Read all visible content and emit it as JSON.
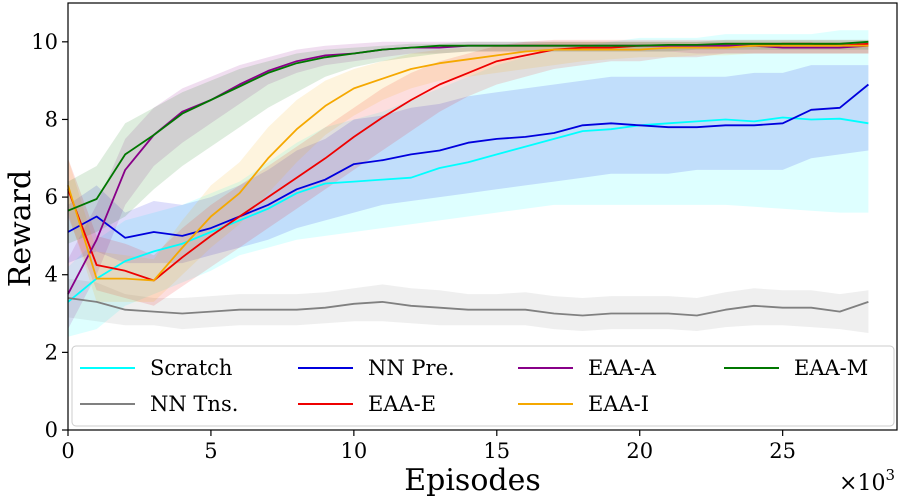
{
  "chart_data": {
    "type": "line",
    "xlabel": "Episodes",
    "ylabel": "Reward",
    "x_multiplier_label": "×10",
    "x_multiplier_exp": "3",
    "xlim": [
      0,
      29
    ],
    "ylim": [
      0,
      11
    ],
    "xticks": [
      0,
      5,
      10,
      15,
      20,
      25
    ],
    "yticks": [
      0,
      2,
      4,
      6,
      8,
      10
    ],
    "grid": false,
    "legend_position": "bottom",
    "x": [
      0,
      1,
      2,
      3,
      4,
      5,
      6,
      7,
      8,
      9,
      10,
      11,
      12,
      13,
      14,
      15,
      16,
      17,
      18,
      19,
      20,
      21,
      22,
      23,
      24,
      25,
      26,
      27,
      28
    ],
    "series": [
      {
        "name": "Scratch",
        "color": "#00ffff",
        "values": [
          3.3,
          3.9,
          4.35,
          4.6,
          4.8,
          5.1,
          5.4,
          5.7,
          6.1,
          6.35,
          6.4,
          6.45,
          6.5,
          6.75,
          6.9,
          7.1,
          7.3,
          7.5,
          7.7,
          7.75,
          7.85,
          7.9,
          7.95,
          8.0,
          7.95,
          8.05,
          8.0,
          8.02,
          7.9
        ],
        "lower": [
          2.4,
          2.6,
          3.2,
          3.5,
          3.8,
          4.1,
          4.5,
          4.7,
          4.9,
          5.0,
          5.1,
          5.2,
          5.3,
          5.4,
          5.5,
          5.6,
          5.7,
          5.8,
          5.8,
          5.8,
          5.8,
          5.8,
          5.8,
          5.8,
          5.75,
          5.7,
          5.65,
          5.6,
          5.6
        ],
        "upper": [
          4.2,
          4.9,
          5.4,
          5.6,
          5.8,
          6.1,
          6.4,
          6.9,
          7.4,
          7.8,
          8.0,
          8.2,
          8.5,
          8.8,
          9.1,
          9.4,
          9.6,
          9.8,
          9.9,
          10.0,
          10.1,
          10.1,
          10.1,
          10.2,
          10.2,
          10.2,
          10.2,
          10.3,
          10.3
        ]
      },
      {
        "name": "NN Tns.",
        "color": "#808080",
        "values": [
          3.4,
          3.3,
          3.1,
          3.05,
          3.0,
          3.05,
          3.1,
          3.1,
          3.1,
          3.15,
          3.25,
          3.3,
          3.2,
          3.15,
          3.1,
          3.1,
          3.1,
          3.0,
          2.95,
          3.0,
          3.0,
          3.0,
          2.95,
          3.1,
          3.2,
          3.15,
          3.15,
          3.05,
          3.3
        ],
        "lower": [
          2.9,
          2.8,
          2.7,
          2.7,
          2.6,
          2.65,
          2.7,
          2.7,
          2.7,
          2.75,
          2.8,
          2.8,
          2.75,
          2.7,
          2.7,
          2.7,
          2.7,
          2.6,
          2.55,
          2.6,
          2.6,
          2.6,
          2.55,
          2.65,
          2.7,
          2.7,
          2.65,
          2.6,
          2.5
        ],
        "upper": [
          3.9,
          3.8,
          3.5,
          3.4,
          3.4,
          3.45,
          3.5,
          3.5,
          3.5,
          3.55,
          3.65,
          3.75,
          3.65,
          3.6,
          3.5,
          3.5,
          3.55,
          3.45,
          3.4,
          3.45,
          3.45,
          3.45,
          3.4,
          3.55,
          3.65,
          3.6,
          3.6,
          3.5,
          3.6
        ]
      },
      {
        "name": "NN Pre.",
        "color": "#0000dd",
        "values": [
          5.1,
          5.5,
          4.95,
          5.1,
          5.0,
          5.2,
          5.5,
          5.8,
          6.2,
          6.45,
          6.85,
          6.95,
          7.1,
          7.2,
          7.4,
          7.5,
          7.55,
          7.65,
          7.85,
          7.9,
          7.85,
          7.8,
          7.8,
          7.85,
          7.85,
          7.9,
          8.25,
          8.3,
          8.9
        ],
        "lower": [
          4.3,
          4.6,
          4.3,
          4.3,
          4.3,
          4.5,
          4.7,
          4.9,
          5.2,
          5.4,
          5.6,
          5.8,
          5.9,
          6.0,
          6.1,
          6.2,
          6.3,
          6.4,
          6.5,
          6.6,
          6.6,
          6.6,
          6.7,
          6.7,
          6.7,
          6.7,
          7.0,
          7.1,
          7.2
        ],
        "upper": [
          5.8,
          6.3,
          5.6,
          5.9,
          5.8,
          6.0,
          6.3,
          6.7,
          7.2,
          7.5,
          8.0,
          8.1,
          8.3,
          8.4,
          8.6,
          8.7,
          8.8,
          8.9,
          9.0,
          9.1,
          9.1,
          9.1,
          9.1,
          9.1,
          9.2,
          9.2,
          9.4,
          9.4,
          9.4
        ]
      },
      {
        "name": "EAA-E",
        "color": "#ee0000",
        "values": [
          6.2,
          4.25,
          4.1,
          3.85,
          4.45,
          5.0,
          5.5,
          6.0,
          6.5,
          7.0,
          7.55,
          8.05,
          8.5,
          8.9,
          9.2,
          9.5,
          9.65,
          9.8,
          9.85,
          9.85,
          9.9,
          9.9,
          9.9,
          9.9,
          9.9,
          9.95,
          9.95,
          9.9,
          9.95
        ],
        "lower": [
          5.5,
          3.6,
          3.4,
          3.2,
          3.7,
          4.2,
          4.7,
          5.2,
          5.7,
          6.2,
          6.7,
          7.2,
          7.7,
          8.2,
          8.6,
          8.9,
          9.1,
          9.3,
          9.4,
          9.5,
          9.5,
          9.6,
          9.6,
          9.7,
          9.7,
          9.7,
          9.7,
          9.7,
          9.7
        ],
        "upper": [
          7.0,
          5.0,
          4.8,
          4.5,
          5.2,
          5.8,
          6.3,
          6.8,
          7.3,
          7.8,
          8.3,
          8.8,
          9.2,
          9.5,
          9.7,
          9.9,
          10.0,
          10.05,
          10.05,
          10.05,
          10.05,
          10.05,
          10.05,
          10.05,
          10.05,
          10.05,
          10.05,
          10.05,
          10.05
        ]
      },
      {
        "name": "EAA-A",
        "color": "#880088",
        "values": [
          3.5,
          4.9,
          6.7,
          7.6,
          8.2,
          8.5,
          8.9,
          9.25,
          9.5,
          9.65,
          9.7,
          9.8,
          9.85,
          9.85,
          9.9,
          9.9,
          9.9,
          9.9,
          9.9,
          9.9,
          9.9,
          9.9,
          9.9,
          9.9,
          9.9,
          9.85,
          9.85,
          9.85,
          9.9
        ],
        "lower": [
          2.6,
          4.0,
          5.8,
          6.8,
          7.4,
          7.9,
          8.4,
          8.9,
          9.2,
          9.4,
          9.5,
          9.6,
          9.7,
          9.7,
          9.75,
          9.75,
          9.75,
          9.75,
          9.75,
          9.75,
          9.75,
          9.75,
          9.7,
          9.7,
          9.7,
          9.7,
          9.7,
          9.7,
          9.7
        ],
        "upper": [
          4.4,
          5.8,
          7.5,
          8.3,
          8.8,
          9.1,
          9.4,
          9.6,
          9.8,
          9.9,
          9.95,
          10.0,
          10.0,
          10.0,
          10.0,
          10.0,
          10.0,
          10.0,
          10.0,
          10.0,
          10.0,
          10.0,
          10.0,
          10.0,
          10.0,
          10.0,
          10.0,
          10.0,
          10.0
        ]
      },
      {
        "name": "EAA-I",
        "color": "#f5a800",
        "values": [
          6.3,
          3.9,
          3.9,
          3.85,
          4.7,
          5.5,
          6.1,
          7.0,
          7.75,
          8.35,
          8.8,
          9.05,
          9.3,
          9.45,
          9.55,
          9.65,
          9.75,
          9.8,
          9.8,
          9.8,
          9.8,
          9.85,
          9.85,
          9.85,
          9.9,
          9.9,
          9.9,
          9.9,
          9.9
        ],
        "lower": [
          5.6,
          3.3,
          3.3,
          3.3,
          4.0,
          4.7,
          5.3,
          6.1,
          6.9,
          7.6,
          8.1,
          8.5,
          8.8,
          9.0,
          9.1,
          9.2,
          9.3,
          9.4,
          9.5,
          9.55,
          9.6,
          9.6,
          9.65,
          9.65,
          9.7,
          9.7,
          9.7,
          9.7,
          9.7
        ],
        "upper": [
          7.0,
          4.6,
          4.5,
          4.4,
          5.4,
          6.3,
          6.9,
          7.8,
          8.5,
          9.0,
          9.3,
          9.5,
          9.7,
          9.8,
          9.85,
          9.9,
          9.95,
          10.0,
          10.0,
          10.0,
          10.0,
          10.0,
          10.0,
          10.0,
          10.0,
          10.0,
          10.0,
          10.0,
          10.0
        ]
      },
      {
        "name": "EAA-M",
        "color": "#007700",
        "values": [
          5.65,
          5.95,
          7.1,
          7.6,
          8.15,
          8.5,
          8.85,
          9.2,
          9.45,
          9.6,
          9.7,
          9.8,
          9.85,
          9.9,
          9.9,
          9.9,
          9.9,
          9.9,
          9.9,
          9.9,
          9.9,
          9.92,
          9.92,
          9.95,
          9.95,
          9.95,
          9.95,
          9.95,
          10.0
        ],
        "lower": [
          4.8,
          5.1,
          5.5,
          6.2,
          6.8,
          7.3,
          7.8,
          8.3,
          8.7,
          9.1,
          9.35,
          9.5,
          9.6,
          9.7,
          9.75,
          9.75,
          9.75,
          9.75,
          9.75,
          9.75,
          9.75,
          9.75,
          9.8,
          9.8,
          9.8,
          9.8,
          9.8,
          9.8,
          9.8
        ],
        "upper": [
          6.4,
          6.8,
          7.9,
          8.3,
          8.7,
          9.0,
          9.3,
          9.5,
          9.7,
          9.8,
          9.85,
          9.9,
          9.95,
          9.95,
          10.0,
          10.0,
          10.0,
          10.0,
          10.0,
          10.0,
          10.0,
          10.0,
          10.0,
          10.05,
          10.05,
          10.05,
          10.05,
          10.05,
          10.05
        ]
      }
    ]
  }
}
